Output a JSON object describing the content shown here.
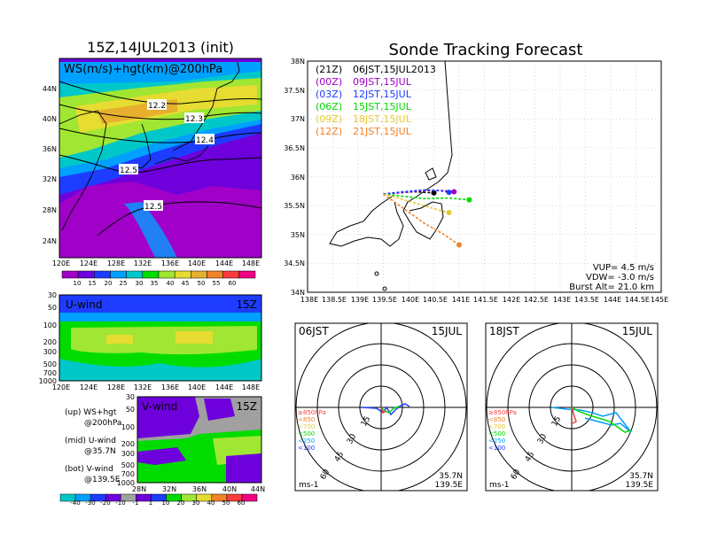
{
  "colors": {
    "speed_scale": [
      "#a000c8",
      "#6e00dc",
      "#1e3cff",
      "#00a0ff",
      "#00c8c8",
      "#00dc00",
      "#a0e632",
      "#e6dc32",
      "#e6af2d",
      "#f08228",
      "#fa3c3c",
      "#f00082"
    ],
    "u_scale": [
      "#00c8c8",
      "#00a0ff",
      "#1e3cff",
      "#6e00dc",
      "#a0a0a0",
      "#6e00dc",
      "#1e3cff",
      "#00dc00",
      "#a0e632",
      "#e6dc32",
      "#f08228",
      "#fa3c3c",
      "#f00082"
    ],
    "tracks": [
      "#000000",
      "#a000c8",
      "#1e3cff",
      "#00dc00",
      "#e6c832",
      "#f08228"
    ]
  },
  "left_top": {
    "title": "15Z,14JUL2013 (init)",
    "label": "WS(m/s)+hgt(km)@200hPa",
    "lat_ticks": [
      "44N",
      "40N",
      "36N",
      "32N",
      "28N",
      "24N"
    ],
    "lon_ticks": [
      "120E",
      "124E",
      "128E",
      "132E",
      "136E",
      "140E",
      "144E",
      "148E"
    ],
    "contour_labels": [
      "12.2",
      "12.3",
      "12.4",
      "12.5",
      "12.5"
    ],
    "colorbar_ticks": [
      "10",
      "15",
      "20",
      "25",
      "30",
      "35",
      "40",
      "45",
      "50",
      "55",
      "60"
    ]
  },
  "u_panel": {
    "label": "U-wind",
    "time": "15Z",
    "p_ticks": [
      "30",
      "50",
      "100",
      "200",
      "300",
      "500",
      "700",
      "1000"
    ],
    "lon_ticks": [
      "120E",
      "124E",
      "128E",
      "132E",
      "136E",
      "140E",
      "144E",
      "148E"
    ]
  },
  "v_panel": {
    "label": "V-wind",
    "time": "15Z",
    "p_ticks": [
      "30",
      "50",
      "100",
      "200",
      "300",
      "500",
      "700",
      "1000"
    ],
    "lat_ticks": [
      "28N",
      "32N",
      "36N",
      "40N",
      "44N"
    ]
  },
  "legend_notes": [
    {
      "a": "(up) WS+hgt",
      "b": "@200hPa"
    },
    {
      "a": "(mid) U-wind",
      "b": "@35.7N"
    },
    {
      "a": "(bot) V-wind",
      "b": "@139.5E"
    }
  ],
  "bottom_colorbar_ticks": [
    "-40",
    "-30",
    "-20",
    "-10",
    "-1",
    "1",
    "10",
    "20",
    "30",
    "40",
    "50",
    "60"
  ],
  "main": {
    "title": "Sonde Tracking Forecast",
    "legend": [
      {
        "code": "(21Z)",
        "text": "06JST,15JUL2013"
      },
      {
        "code": "(00Z)",
        "text": "09JST,15JUL"
      },
      {
        "code": "(03Z)",
        "text": "12JST,15JUL"
      },
      {
        "code": "(06Z)",
        "text": "15JST,15JUL"
      },
      {
        "code": "(09Z)",
        "text": "18JST,15JUL"
      },
      {
        "code": "(12Z)",
        "text": "21JST,15JUL"
      }
    ],
    "lat_ticks": [
      "38N",
      "37.5N",
      "37N",
      "36.5N",
      "36N",
      "35.5N",
      "35N",
      "34.5N",
      "34N"
    ],
    "lon_ticks": [
      "138E",
      "138.5E",
      "139E",
      "139.5E",
      "140E",
      "140.5E",
      "141E",
      "141.5E",
      "142E",
      "142.5E",
      "143E",
      "143.5E",
      "144E",
      "144.5E",
      "145E"
    ],
    "info": [
      "VUP= 4.5 m/s",
      "VDW= -3.0 m/s",
      "Burst Alt= 21.0 km"
    ]
  },
  "chart_data": [
    {
      "type": "line",
      "title": "Sonde Tracking Forecast",
      "xlabel": "",
      "ylabel": "",
      "xlim": [
        138,
        145
      ],
      "ylim": [
        34,
        38
      ],
      "series": [
        {
          "name": "06JST,15JUL2013",
          "x": [
            139.5,
            139.8,
            140.1,
            140.3,
            140.5
          ],
          "y": [
            35.7,
            35.72,
            35.74,
            35.73,
            35.72
          ]
        },
        {
          "name": "09JST,15JUL",
          "x": [
            139.5,
            139.9,
            140.3,
            140.7,
            140.9
          ],
          "y": [
            35.7,
            35.73,
            35.76,
            35.76,
            35.74
          ]
        },
        {
          "name": "12JST,15JUL",
          "x": [
            139.5,
            139.9,
            140.3,
            140.6,
            140.8
          ],
          "y": [
            35.7,
            35.74,
            35.77,
            35.76,
            35.73
          ]
        },
        {
          "name": "15JST,15JUL",
          "x": [
            139.5,
            139.9,
            140.3,
            140.8,
            141.2
          ],
          "y": [
            35.7,
            35.66,
            35.62,
            35.63,
            35.6
          ]
        },
        {
          "name": "18JST,15JUL",
          "x": [
            139.5,
            139.9,
            140.3,
            140.6,
            140.8
          ],
          "y": [
            35.7,
            35.6,
            35.5,
            35.42,
            35.38
          ]
        },
        {
          "name": "21JST,15JUL",
          "x": [
            139.5,
            139.9,
            140.3,
            140.7,
            141.0
          ],
          "y": [
            35.7,
            35.45,
            35.2,
            35.0,
            34.82
          ]
        }
      ]
    }
  ],
  "hodo1": {
    "title": "06JST",
    "date": "15JUL",
    "ring_labels": [
      "15",
      "30",
      "45",
      "60"
    ],
    "levels": [
      "≥850hPa",
      "<850",
      "<700",
      "<500",
      "<250",
      "<100"
    ],
    "units": "ms-1",
    "loc1": "35.7N",
    "loc2": "139.5E"
  },
  "hodo2": {
    "title": "18JST",
    "date": "15JUL",
    "ring_labels": [
      "15",
      "30",
      "45",
      "60"
    ],
    "levels": [
      "≥850hPa",
      "<850",
      "<700",
      "<500",
      "<250",
      "<100"
    ],
    "units": "ms-1",
    "loc1": "35.7N",
    "loc2": "139.5E"
  }
}
